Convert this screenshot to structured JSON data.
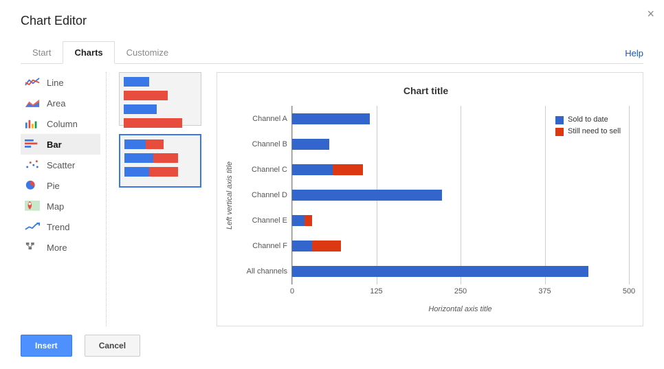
{
  "dialog": {
    "title": "Chart Editor",
    "close_glyph": "×",
    "help_label": "Help"
  },
  "tabs": {
    "items": [
      "Start",
      "Charts",
      "Customize"
    ],
    "active_index": 1
  },
  "chart_types": {
    "items": [
      {
        "label": "Line",
        "id": "line"
      },
      {
        "label": "Area",
        "id": "area"
      },
      {
        "label": "Column",
        "id": "column"
      },
      {
        "label": "Bar",
        "id": "bar"
      },
      {
        "label": "Scatter",
        "id": "scatter"
      },
      {
        "label": "Pie",
        "id": "pie"
      },
      {
        "label": "Map",
        "id": "map"
      },
      {
        "label": "Trend",
        "id": "trend"
      },
      {
        "label": "More",
        "id": "more"
      }
    ],
    "selected_id": "bar"
  },
  "thumbnails": {
    "selected_index": 1,
    "items": [
      {
        "type": "bar-grouped",
        "rows": [
          {
            "s1_pct": 35,
            "s2_pct": 0
          },
          {
            "s1_pct": 0,
            "s2_pct": 60
          },
          {
            "s1_pct": 45,
            "s2_pct": 0
          },
          {
            "s1_pct": 0,
            "s2_pct": 80
          }
        ]
      },
      {
        "type": "bar-stacked",
        "rows": [
          {
            "s1_pct": 30,
            "s2_pct": 25
          },
          {
            "s1_pct": 40,
            "s2_pct": 35
          },
          {
            "s1_pct": 35,
            "s2_pct": 40
          }
        ]
      }
    ],
    "colors": {
      "s1": "#3b78e7",
      "s2": "#e74c3c",
      "bg": "#f3f3f3"
    }
  },
  "preview_chart": {
    "type": "bar-stacked-horizontal",
    "title": "Chart title",
    "y_axis_title": "Left vertical axis title",
    "x_axis_title": "Horizontal axis title",
    "x_min": 0,
    "x_max": 500,
    "x_tick_step": 125,
    "x_ticks": [
      0,
      125,
      250,
      375,
      500
    ],
    "categories": [
      "Channel A",
      "Channel B",
      "Channel C",
      "Channel D",
      "Channel E",
      "Channel F",
      "All channels"
    ],
    "series": [
      {
        "name": "Sold to date",
        "color": "#3366cc"
      },
      {
        "name": "Still need to sell",
        "color": "#dc3912"
      }
    ],
    "data": [
      {
        "s1": 115,
        "s2": 0
      },
      {
        "s1": 55,
        "s2": 0
      },
      {
        "s1": 60,
        "s2": 45
      },
      {
        "s1": 222,
        "s2": 0
      },
      {
        "s1": 18,
        "s2": 12
      },
      {
        "s1": 30,
        "s2": 42
      },
      {
        "s1": 440,
        "s2": 0
      }
    ],
    "grid_color": "#cccccc",
    "label_fontsize": 11,
    "title_fontsize": 14,
    "background_color": "#ffffff"
  },
  "footer": {
    "insert_label": "Insert",
    "cancel_label": "Cancel"
  }
}
